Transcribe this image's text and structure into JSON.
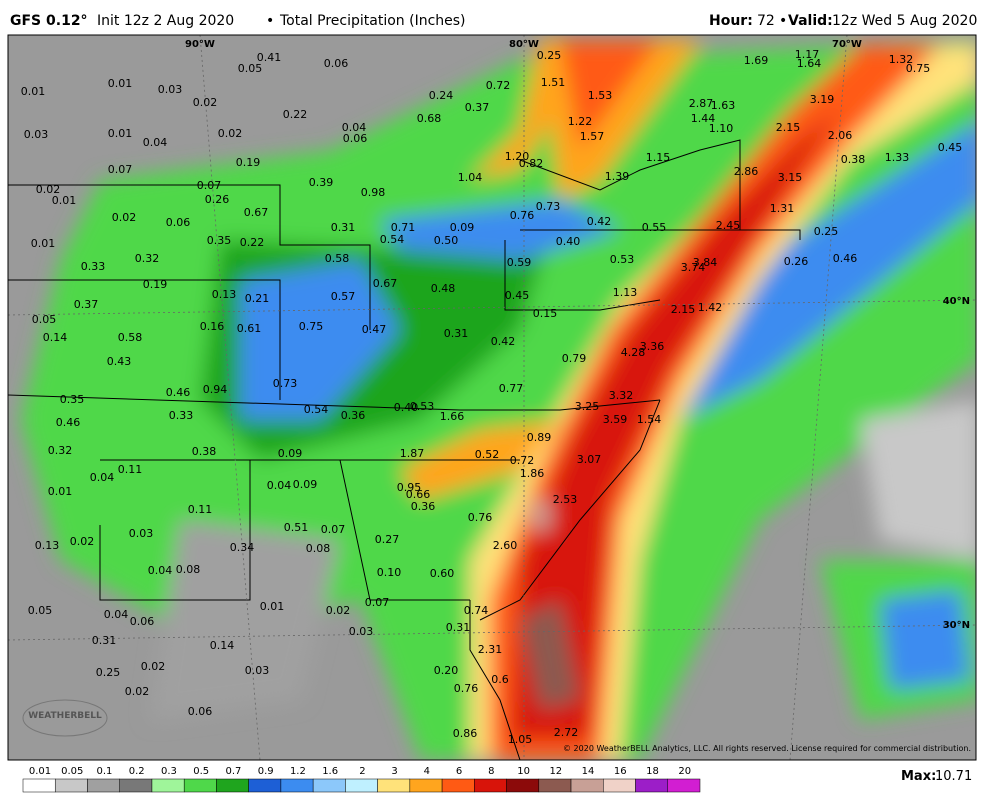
{
  "header": {
    "model": "GFS 0.12°",
    "init": "Init 12z 2 Aug 2020",
    "product": "Total Precipitation (Inches)",
    "hour_label": "Hour:",
    "hour": "72",
    "valid_label": "Valid:",
    "valid": "12z Wed 5 Aug 2020"
  },
  "map": {
    "grid_labels": [
      "90°W",
      "80°W",
      "70°W",
      "40°N",
      "30°N"
    ],
    "labels": [
      "0.01",
      "0.01",
      "0.03",
      "0.01",
      "0.04",
      "0.07",
      "0.02",
      "0.01",
      "0.02",
      "0.01",
      "0.33",
      "0.32",
      "0.19",
      "0.37",
      "0.05",
      "0.14",
      "0.58",
      "0.43",
      "0.46",
      "0.35",
      "0.46",
      "0.33",
      "0.32",
      "0.11",
      "0.04",
      "0.01",
      "0.11",
      "0.03",
      "0.02",
      "0.13",
      "0.04",
      "0.08",
      "0.05",
      "0.04",
      "0.06",
      "0.31",
      "0.25",
      "0.02",
      "0.02",
      "0.03",
      "0.06",
      "0.14",
      "0.06",
      "0.41",
      "0.05",
      "0.03",
      "0.02",
      "0.02",
      "0.22",
      "0.04",
      "0.06",
      "0.19",
      "0.07",
      "0.26",
      "0.67",
      "0.06",
      "0.35",
      "0.22",
      "0.39",
      "0.98",
      "0.31",
      "0.71",
      "0.54",
      "0.50",
      "0.09",
      "0.24",
      "0.37",
      "0.68",
      "0.72",
      "0.25",
      "1.51",
      "1.53",
      "1.22",
      "1.57",
      "1.20",
      "0.82",
      "1.04",
      "0.76",
      "0.73",
      "0.42",
      "0.40",
      "0.55",
      "0.53",
      "0.59",
      "0.45",
      "1.13",
      "0.15",
      "0.58",
      "0.67",
      "0.48",
      "0.57",
      "0.13",
      "0.21",
      "0.16",
      "0.61",
      "0.75",
      "0.47",
      "0.31",
      "0.42",
      "0.79",
      "0.73",
      "0.94",
      "0.54",
      "0.36",
      "0.40",
      "0.53",
      "1.66",
      "0.77",
      "0.89",
      "1.87",
      "0.52",
      "0.72",
      "1.86",
      "0.38",
      "0.09",
      "0.04",
      "0.09",
      "0.95",
      "0.66",
      "0.36",
      "0.76",
      "2.53",
      "3.07",
      "3.59",
      "3.25",
      "3.32",
      "1.54",
      "4.28",
      "3.36",
      "2.15",
      "1.42",
      "3.74",
      "3.84",
      "2.45",
      "0.51",
      "0.07",
      "0.08",
      "0.34",
      "0.27",
      "2.60",
      "0.10",
      "0.60",
      "0.74",
      "0.01",
      "0.02",
      "0.07",
      "0.03",
      "0.31",
      "2.31",
      "0.20",
      "0.76",
      "0.6",
      "0.86",
      "1.05",
      "2.72",
      "1.69",
      "1.17",
      "1.64",
      "1.32",
      "0.75",
      "2.87",
      "1.63",
      "3.19",
      "1.44",
      "1.10",
      "2.15",
      "2.06",
      "1.15",
      "1.39",
      "2.86",
      "3.15",
      "0.38",
      "1.33",
      "0.45",
      "1.31",
      "0.25",
      "0.26",
      "0.46"
    ],
    "logo": "WEATHERBELL",
    "copyright": "© 2020 WeatherBELL Analytics, LLC. All rights reserved. License required for commercial distribution."
  },
  "legend": {
    "labels": [
      "0.01",
      "0.05",
      "0.1",
      "0.2",
      "0.3",
      "0.5",
      "0.7",
      "0.9",
      "1.2",
      "1.6",
      "2",
      "3",
      "4",
      "6",
      "8",
      "10",
      "12",
      "14",
      "16",
      "18",
      "20"
    ],
    "colors": [
      "#ffffff",
      "#c8c8c8",
      "#a0a0a0",
      "#787878",
      "#9ff59a",
      "#4fd84a",
      "#1fa51e",
      "#1d5fd6",
      "#3c8cf0",
      "#8cc8fa",
      "#bff0ff",
      "#ffe27a",
      "#ffa51e",
      "#ff5a14",
      "#d8140a",
      "#8c0a0a",
      "#8c5a50",
      "#c8a096",
      "#f0d2c8",
      "#9c1ec8",
      "#d21ed2"
    ]
  },
  "max": {
    "label": "Max:",
    "value": "10.71"
  }
}
